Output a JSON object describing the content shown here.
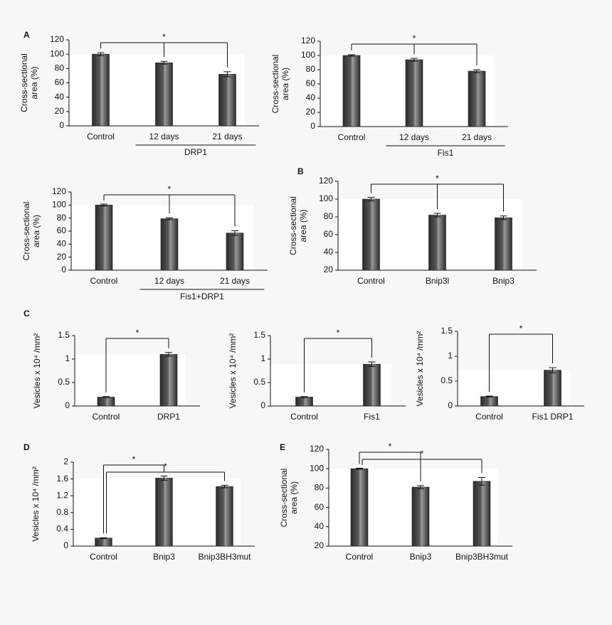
{
  "chart_data": [
    {
      "type": "bar",
      "panel": "A",
      "ylabel": [
        "Cross-sectional",
        "area (%)"
      ],
      "categories": [
        "Control",
        "12 days",
        "21 days"
      ],
      "values": [
        100,
        88,
        72
      ],
      "errors": [
        2,
        2,
        3.5
      ],
      "color": "#5a5a5a",
      "ylim": [
        0,
        120
      ],
      "yticks": [
        0,
        20,
        40,
        60,
        80,
        100,
        120
      ],
      "group": {
        "label": "DRP1",
        "categories": [
          "12 days",
          "21 days"
        ]
      },
      "significance": [
        {
          "between": [
            "Control",
            "12 days",
            "21 days"
          ],
          "label": "*"
        }
      ]
    },
    {
      "type": "bar",
      "ylabel": [
        "Cross-sectional",
        "area (%)"
      ],
      "categories": [
        "Control",
        "12 days",
        "21 days"
      ],
      "values": [
        100,
        94,
        78
      ],
      "errors": [
        1,
        2,
        2
      ],
      "color": "#5a5a5a",
      "ylim": [
        0,
        120
      ],
      "yticks": [
        0,
        20,
        40,
        60,
        80,
        100,
        120
      ],
      "group": {
        "label": "Fis1",
        "categories": [
          "12 days",
          "21 days"
        ]
      },
      "significance": [
        {
          "between": [
            "Control",
            "12 days",
            "21 days"
          ],
          "label": "*"
        }
      ]
    },
    {
      "type": "bar",
      "ylabel": [
        "Cross-sectional",
        "area (%)"
      ],
      "categories": [
        "Control",
        "12 days",
        "21 days"
      ],
      "values": [
        100,
        79,
        57
      ],
      "errors": [
        1.5,
        1.5,
        3.5
      ],
      "color": "#5a5a5a",
      "ylim": [
        0,
        120
      ],
      "yticks": [
        0,
        20,
        40,
        60,
        80,
        100,
        120
      ],
      "group": {
        "label": "Fis1+DRP1",
        "categories": [
          "12 days",
          "21 days"
        ]
      },
      "significance": [
        {
          "between": [
            "Control",
            "12 days",
            "21 days"
          ],
          "label": "*"
        }
      ]
    },
    {
      "type": "bar",
      "panel": "B",
      "ylabel": [
        "Cross-sectional",
        "area (%)"
      ],
      "categories": [
        "Control",
        "Bnip3l",
        "Bnip3"
      ],
      "values": [
        100,
        82,
        79
      ],
      "errors": [
        2,
        2,
        2
      ],
      "color": "#5a5a5a",
      "ylim": [
        20,
        120
      ],
      "yticks": [
        20,
        40,
        60,
        80,
        100,
        120
      ],
      "significance": [
        {
          "between": [
            "Control",
            "Bnip3l",
            "Bnip3"
          ],
          "label": "*"
        }
      ]
    },
    {
      "type": "bar",
      "panel": "C",
      "ylabel": [
        "Vesicles x 10⁴ /mm²"
      ],
      "categories": [
        "Control",
        "DRP1"
      ],
      "values": [
        0.19,
        1.1
      ],
      "errors": [
        0.01,
        0.04
      ],
      "color": "#5a5a5a",
      "ylim": [
        0,
        1.5
      ],
      "yticks": [
        0,
        0.5,
        1,
        1.5
      ],
      "significance": [
        {
          "between": [
            "Control",
            "DRP1"
          ],
          "label": "*"
        }
      ]
    },
    {
      "type": "bar",
      "ylabel": [
        "Vesicles x 10⁴ /mm²"
      ],
      "categories": [
        "Control",
        "Fis1"
      ],
      "values": [
        0.19,
        0.89
      ],
      "errors": [
        0.01,
        0.05
      ],
      "color": "#5a5a5a",
      "ylim": [
        0,
        1.5
      ],
      "yticks": [
        0,
        0.5,
        1,
        1.5
      ],
      "significance": [
        {
          "between": [
            "Control",
            "Fis1"
          ],
          "label": "*"
        }
      ]
    },
    {
      "type": "bar",
      "ylabel": [
        "Vesicles x 10⁴ /mm²"
      ],
      "categories": [
        "Control",
        "Fis1 DRP1"
      ],
      "values": [
        0.19,
        0.72
      ],
      "errors": [
        0.01,
        0.05
      ],
      "color": "#5a5a5a",
      "ylim": [
        0,
        1.5
      ],
      "yticks": [
        0,
        0.5,
        1,
        1.5
      ],
      "significance": [
        {
          "between": [
            "Control",
            "Fis1 DRP1"
          ],
          "label": "*"
        }
      ]
    },
    {
      "type": "bar",
      "panel": "D",
      "ylabel": [
        "Vesicles x 10⁴ /mm²"
      ],
      "categories": [
        "Control",
        "Bnip3",
        "Bnip3BH3mut"
      ],
      "values": [
        0.19,
        1.62,
        1.42
      ],
      "errors": [
        0.01,
        0.05,
        0.03
      ],
      "color": "#5a5a5a",
      "ylim": [
        0,
        2
      ],
      "yticks": [
        0,
        0.4,
        0.8,
        1.2,
        1.6,
        2
      ],
      "significance": [
        {
          "between": [
            "Control",
            "Bnip3"
          ],
          "label": "*"
        },
        {
          "between": [
            "Control",
            "Bnip3BH3mut"
          ],
          "label": "*"
        }
      ]
    },
    {
      "type": "bar",
      "panel": "E",
      "ylabel": [
        "Cross-sectional",
        "area (%)"
      ],
      "categories": [
        "Control",
        "Bnip3",
        "Bnip3BH3mut"
      ],
      "values": [
        100,
        81,
        87
      ],
      "errors": [
        0.5,
        1.5,
        4
      ],
      "color": "#5a5a5a",
      "ylim": [
        20,
        120
      ],
      "yticks": [
        20,
        40,
        60,
        80,
        100,
        120
      ],
      "significance": [
        {
          "between": [
            "Control",
            "Bnip3"
          ],
          "label": "*"
        },
        {
          "between": [
            "Control",
            "Bnip3BH3mut"
          ],
          "label": "*"
        }
      ]
    }
  ]
}
